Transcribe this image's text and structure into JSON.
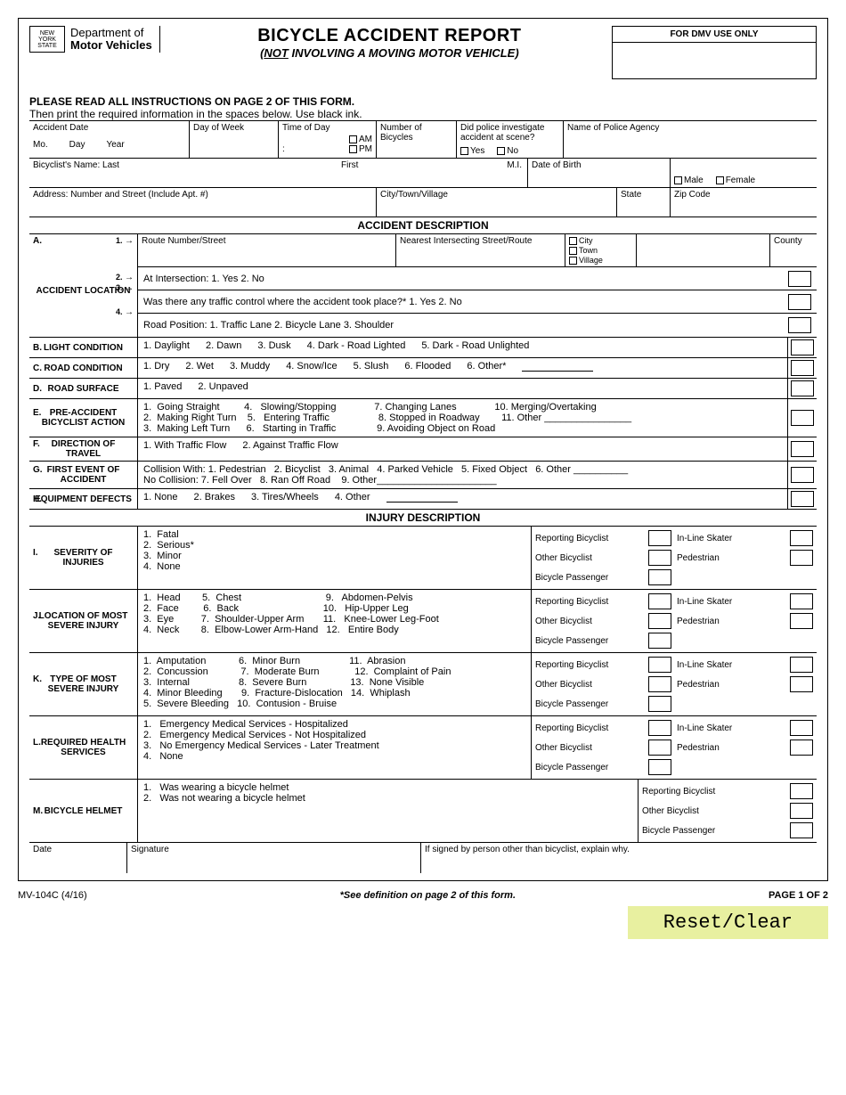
{
  "logo": {
    "line1": "NEW",
    "line2": "YORK",
    "line3": "STATE"
  },
  "dept": {
    "line1": "Department of",
    "line2": "Motor Vehicles"
  },
  "title": "BICYCLE ACCIDENT REPORT",
  "subtitle_prefix": "(",
  "subtitle_not": "NOT",
  "subtitle_rest": " INVOLVING A MOVING MOTOR VEHICLE)",
  "dmv_use": "FOR DMV USE ONLY",
  "instr_bold": "PLEASE READ ALL INSTRUCTIONS ON PAGE 2 OF THIS FORM.",
  "instr_sub": "Then print the required information in the spaces below. Use black ink.",
  "row1": {
    "accident_date": "Accident Date",
    "mo": "Mo.",
    "day": "Day",
    "year": "Year",
    "dow": "Day of Week",
    "tod": "Time of Day",
    "am": "AM",
    "pm": "PM",
    "colon": ":",
    "num_bikes": "Number of Bicycles",
    "police": "Did police investigate accident at scene?",
    "yes": "Yes",
    "no": "No",
    "agency": "Name of Police Agency"
  },
  "row2": {
    "last": "Bicyclist's Name:  Last",
    "first": "First",
    "mi": "M.I.",
    "dob": "Date of Birth",
    "male": "Male",
    "female": "Female"
  },
  "row3": {
    "addr": "Address:  Number and Street (Include Apt. #)",
    "city": "City/Town/Village",
    "state": "State",
    "zip": "Zip Code"
  },
  "sec_accident": "ACCIDENT DESCRIPTION",
  "A": {
    "letter": "A.",
    "label": "ACCIDENT LOCATION",
    "r1": {
      "num": "1.",
      "arrow": "→",
      "route": "Route Number/Street",
      "nearest": "Nearest Intersecting Street/Route",
      "city": "City",
      "town": "Town",
      "village": "Village",
      "county": "County"
    },
    "r2": {
      "num": "2.",
      "arrow": "→",
      "text": "At Intersection:  1. Yes        2. No"
    },
    "r3": {
      "num": "3.",
      "arrow": "→",
      "text": "Was there any traffic control where the accident took place?*     1. Yes       2. No"
    },
    "r4": {
      "num": "4.",
      "arrow": "→",
      "text": "Road Position:  1. Traffic Lane      2. Bicycle Lane     3. Shoulder"
    }
  },
  "B": {
    "letter": "B.",
    "label": "LIGHT CONDITION",
    "opts": [
      "1.  Daylight",
      "2.  Dawn",
      "3.  Dusk",
      "4.  Dark - Road Lighted",
      "5.  Dark - Road Unlighted"
    ]
  },
  "C": {
    "letter": "C.",
    "label": "ROAD CONDITION",
    "opts": [
      "1.  Dry",
      "2.  Wet",
      "3.  Muddy",
      "4.  Snow/Ice",
      "5.  Slush",
      "6.  Flooded",
      "6.  Other*"
    ]
  },
  "D": {
    "letter": "D.",
    "label": "ROAD SURFACE",
    "opts": [
      "1.  Paved",
      "2.  Unpaved"
    ]
  },
  "E": {
    "letter": "E.",
    "label": "PRE-ACCIDENT BICYCLIST ACTION",
    "lines": [
      "1.  Going Straight         4.   Slowing/Stopping              7. Changing Lanes              10. Merging/Overtaking",
      "2.  Making Right Turn    5.   Entering Traffic                  8. Stopped in Roadway        11. Other ________________",
      "3.  Making Left Turn      6.   Starting in Traffic               9. Avoiding Object on Road"
    ]
  },
  "F": {
    "letter": "F.",
    "label": "DIRECTION OF TRAVEL",
    "opts": [
      "1.  With Traffic Flow",
      "2.   Against Traffic Flow"
    ]
  },
  "G": {
    "letter": "G.",
    "label": "FIRST EVENT OF ACCIDENT",
    "lines": [
      "Collision With: 1. Pedestrian   2. Bicyclist   3. Animal   4. Parked Vehicle   5. Fixed Object   6. Other __________",
      "No Collision: 7. Fell Over   8. Ran Off Road    9. Other______________________"
    ]
  },
  "H": {
    "letter": "H.",
    "label": "EQUIPMENT DEFECTS",
    "opts": [
      "1.  None",
      "2.  Brakes",
      "3.  Tires/Wheels",
      "4.  Other"
    ]
  },
  "sec_injury": "INJURY DESCRIPTION",
  "I": {
    "letter": "I.",
    "label": "SEVERITY OF INJURIES",
    "lines": [
      "1.  Fatal",
      "2.  Serious*",
      "3.  Minor",
      "4.  None"
    ]
  },
  "J": {
    "letter": "J.",
    "label": "LOCATION OF MOST SEVERE INJURY",
    "lines": [
      "1.  Head        5.  Chest                               9.   Abdomen-Pelvis",
      "2.  Face         6.  Back                               10.   Hip-Upper Leg",
      "3.  Eye          7.  Shoulder-Upper Arm       11.   Knee-Lower Leg-Foot",
      "4.  Neck        8.  Elbow-Lower Arm-Hand   12.   Entire Body"
    ]
  },
  "K": {
    "letter": "K.",
    "label": "TYPE OF MOST SEVERE INJURY",
    "lines": [
      "1.  Amputation            6.  Minor Burn                  11.  Abrasion",
      "2.  Concussion            7.  Moderate Burn             12.  Complaint of Pain",
      "3.  Internal                  8.  Severe Burn                13.  None Visible",
      "4.  Minor Bleeding       9.  Fracture-Dislocation   14.  Whiplash",
      "5.  Severe Bleeding   10.  Contusion - Bruise"
    ]
  },
  "L": {
    "letter": "L.",
    "label": "REQUIRED HEALTH SERVICES",
    "lines": [
      "1.   Emergency Medical Services - Hospitalized",
      "2.   Emergency Medical Services - Not Hospitalized",
      "3.   No Emergency Medical Services - Later Treatment",
      "4.   None"
    ]
  },
  "M": {
    "letter": "M.",
    "label": "BICYCLE HELMET",
    "lines": [
      "1.   Was wearing a bicycle helmet",
      "2.   Was not wearing a bicycle helmet"
    ]
  },
  "inj_labels": {
    "rb": "Reporting Bicyclist",
    "ob": "Other Bicyclist",
    "bp": "Bicycle Passenger",
    "ils": "In-Line Skater",
    "ped": "Pedestrian"
  },
  "sig": {
    "date": "Date",
    "signature": "Signature",
    "other": "If signed by person other than bicyclist, explain why."
  },
  "form_id": "MV-104C (4/16)",
  "see_def": "*See definition on page 2 of this form.",
  "page_num": "PAGE 1 OF 2",
  "reset": "Reset/Clear"
}
